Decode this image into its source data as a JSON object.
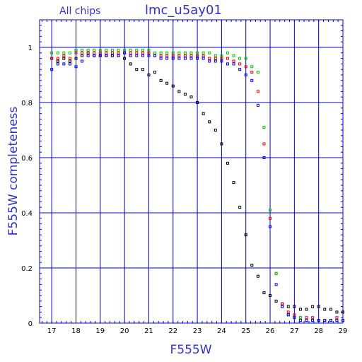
{
  "header": {
    "subtitle": "All chips",
    "title": "lmc_u5ay01"
  },
  "colors": {
    "frame": "#0000cc",
    "grid": "#0000cc",
    "label": "#3333cc",
    "chip_black": "#000000",
    "chip_red": "#ff0000",
    "chip_green": "#00cc00",
    "chip_blue": "#0000ff"
  },
  "chart_data": {
    "type": "scatter",
    "title": "lmc_u5ay01",
    "subtitle": "All chips",
    "xlabel": "F555W",
    "ylabel": "F555W completeness",
    "xlim": [
      16.5,
      29
    ],
    "ylim": [
      0,
      1.1
    ],
    "grid": true,
    "x_ticks": [
      "17",
      "18",
      "19",
      "20",
      "21",
      "22",
      "23",
      "24",
      "25",
      "26",
      "27",
      "28",
      "29"
    ],
    "y_ticks": [
      "0",
      "0.2",
      "0.4",
      "0.6",
      "0.8",
      "1"
    ],
    "x": [
      17.0,
      17.25,
      17.5,
      17.75,
      18.0,
      18.25,
      18.5,
      18.75,
      19.0,
      19.25,
      19.5,
      19.75,
      20.0,
      20.25,
      20.5,
      20.75,
      21.0,
      21.25,
      21.5,
      21.75,
      22.0,
      22.25,
      22.5,
      22.75,
      23.0,
      23.25,
      23.5,
      23.75,
      24.0,
      24.25,
      24.5,
      24.75,
      25.0,
      25.25,
      25.5,
      25.75,
      26.0,
      26.25,
      26.5,
      26.75,
      27.0,
      27.25,
      27.5,
      27.75,
      28.0,
      28.25,
      28.5,
      28.75,
      29.0
    ],
    "series": [
      {
        "color": "#000000",
        "values": [
          0.96,
          0.95,
          0.96,
          0.95,
          0.96,
          0.97,
          0.98,
          0.97,
          0.97,
          0.97,
          0.97,
          0.97,
          0.96,
          0.94,
          0.92,
          0.92,
          0.9,
          0.91,
          0.88,
          0.87,
          0.86,
          0.84,
          0.83,
          0.82,
          0.8,
          0.76,
          0.73,
          0.7,
          0.65,
          0.58,
          0.51,
          0.42,
          0.32,
          0.21,
          0.17,
          0.11,
          0.1,
          0.08,
          0.07,
          0.06,
          0.06,
          0.05,
          0.05,
          0.06,
          0.06,
          0.05,
          0.05,
          0.04,
          0.04
        ]
      },
      {
        "color": "#ff0000",
        "values": [
          0.96,
          0.96,
          0.97,
          0.96,
          0.98,
          0.98,
          0.98,
          0.98,
          0.98,
          0.98,
          0.98,
          0.98,
          0.98,
          0.98,
          0.98,
          0.98,
          0.98,
          0.97,
          0.97,
          0.97,
          0.97,
          0.97,
          0.97,
          0.97,
          0.97,
          0.97,
          0.96,
          0.96,
          0.96,
          0.96,
          0.95,
          0.94,
          0.93,
          0.91,
          0.84,
          0.65,
          0.38,
          0.18,
          0.07,
          0.04,
          0.03,
          0.02,
          0.02,
          0.02,
          0.01,
          0.01,
          0.01,
          0.02,
          0.01
        ]
      },
      {
        "color": "#00cc00",
        "values": [
          0.98,
          0.98,
          0.98,
          0.98,
          0.99,
          0.99,
          0.99,
          0.99,
          0.99,
          0.99,
          0.99,
          0.99,
          0.99,
          0.99,
          0.99,
          0.99,
          0.99,
          0.98,
          0.98,
          0.98,
          0.98,
          0.98,
          0.98,
          0.98,
          0.98,
          0.98,
          0.98,
          0.97,
          0.97,
          0.98,
          0.97,
          0.96,
          0.96,
          0.93,
          0.91,
          0.71,
          0.41,
          0.18,
          0.06,
          0.03,
          0.02,
          0.02,
          0.01,
          0.01,
          0.01,
          0.01,
          0.01,
          0.01,
          0.01
        ]
      },
      {
        "color": "#0000ff",
        "values": [
          0.92,
          0.94,
          0.94,
          0.94,
          0.93,
          0.95,
          0.97,
          0.97,
          0.97,
          0.97,
          0.97,
          0.97,
          0.98,
          0.97,
          0.97,
          0.97,
          0.97,
          0.97,
          0.96,
          0.96,
          0.96,
          0.96,
          0.96,
          0.96,
          0.96,
          0.96,
          0.95,
          0.95,
          0.95,
          0.94,
          0.94,
          0.92,
          0.9,
          0.88,
          0.79,
          0.6,
          0.35,
          0.14,
          0.06,
          0.03,
          0.02,
          0.01,
          0.01,
          0.01,
          0.01,
          0.01,
          0.01,
          0.01,
          0.01
        ]
      }
    ]
  }
}
